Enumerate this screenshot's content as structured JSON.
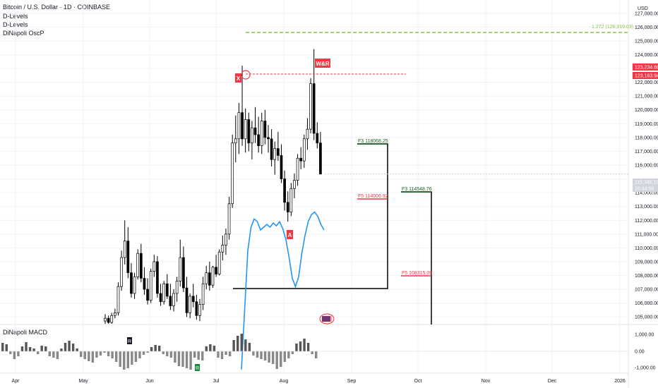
{
  "header": {
    "title": "Bitcoin / U.S. Dollar · 1D · COINBASE",
    "indicators": [
      "D-Levels",
      "D-Levels",
      "DiNapoli OscP"
    ],
    "macd_title": "DiNapoli MACD",
    "currency": "USD"
  },
  "price_axis": {
    "ticks": [
      "127,000.00",
      "126,000.00",
      "125,000.00",
      "124,000.00",
      "122,000.00",
      "121,000.00",
      "120,000.00",
      "119,000.00",
      "118,000.00",
      "117,000.00",
      "116,000.00",
      "114,000.00",
      "113,000.00",
      "112,000.00",
      "111,000.00",
      "110,000.00",
      "109,000.00",
      "108,000.00",
      "107,000.00",
      "106,000.00",
      "105,000.00"
    ],
    "tag_high": "123,234.60",
    "tag_mid": "123,163.94",
    "tag_last": "115,346.19",
    "tag_timer": "16:44:58"
  },
  "macd_axis": {
    "ticks": [
      "1,000.00",
      "0.00",
      "-1,000.00"
    ]
  },
  "time_axis": {
    "labels": [
      "Apr",
      "May",
      "Jun",
      "Jul",
      "Aug",
      "Sep",
      "Oct",
      "Nov",
      "Dec",
      "2026"
    ]
  },
  "annotations": {
    "ext_label": "1.272 (126,319.03)",
    "x_label": "X",
    "a_label": "A",
    "wbr_label": "W&R",
    "f3_left": "F3    118068.25",
    "f5_left": "F5    114006.92",
    "f3_right": "F3    114548.76",
    "f5_right": "F5    108315.09",
    "macd_r1": "R",
    "macd_r2": "R"
  },
  "colors": {
    "up": "#ffffff",
    "down": "#000000",
    "grid": "#f0f3fa",
    "ext_line": "#8bc34a",
    "red": "#f23645",
    "green": "#1b5e20",
    "osc": "#2196f3",
    "last_price": "#cccccc",
    "dark_tag": "#131722"
  },
  "chart_data": {
    "type": "candlestick",
    "title": "Bitcoin / U.S. Dollar · 1D · COINBASE",
    "ylim": [
      104500,
      127500
    ],
    "y_unit": "USD",
    "price_levels": [
      {
        "label": "1.272",
        "value": 126319.03
      },
      {
        "label": "F3",
        "value": 118068.25
      },
      {
        "label": "F5",
        "value": 114006.92
      },
      {
        "label": "F3",
        "value": 114548.76
      },
      {
        "label": "F5",
        "value": 108315.09
      }
    ],
    "last_price": 115346.19,
    "high_marker": 123234.6,
    "ohlc_approx": [
      [
        104700,
        105200,
        104300,
        104900
      ],
      [
        104900,
        105100,
        104500,
        104600
      ],
      [
        104600,
        105300,
        104400,
        105100
      ],
      [
        105100,
        105600,
        104900,
        105300
      ],
      [
        105300,
        107500,
        105100,
        107200
      ],
      [
        107200,
        109800,
        106900,
        109300
      ],
      [
        109300,
        112000,
        108800,
        110500
      ],
      [
        110500,
        111500,
        107800,
        108200
      ],
      [
        108200,
        108900,
        106400,
        106700
      ],
      [
        106700,
        108200,
        106300,
        107900
      ],
      [
        107900,
        109900,
        107700,
        109600
      ],
      [
        109600,
        110300,
        107500,
        107800
      ],
      [
        107800,
        108600,
        106600,
        107000
      ],
      [
        107000,
        107800,
        105900,
        106200
      ],
      [
        106200,
        108500,
        106000,
        108300
      ],
      [
        108300,
        109500,
        107900,
        109000
      ],
      [
        109000,
        109400,
        106400,
        106700
      ],
      [
        106700,
        107400,
        105800,
        106100
      ],
      [
        106100,
        107600,
        105900,
        107400
      ],
      [
        107400,
        108100,
        106300,
        106500
      ],
      [
        106500,
        107400,
        105500,
        105800
      ],
      [
        105800,
        107000,
        105400,
        106700
      ],
      [
        106700,
        107900,
        106100,
        107600
      ],
      [
        107600,
        110600,
        107200,
        109300
      ],
      [
        109300,
        110100,
        106800,
        107100
      ],
      [
        107100,
        107900,
        105000,
        105300
      ],
      [
        105300,
        106700,
        104900,
        106500
      ],
      [
        106500,
        107400,
        105700,
        106100
      ],
      [
        106100,
        106600,
        104800,
        105100
      ],
      [
        105100,
        106300,
        104700,
        105900
      ],
      [
        105900,
        107900,
        105500,
        107400
      ],
      [
        107400,
        108700,
        107000,
        108200
      ],
      [
        108200,
        109000,
        106900,
        107300
      ],
      [
        107300,
        108700,
        107100,
        108600
      ],
      [
        108600,
        109500,
        107900,
        108100
      ],
      [
        108100,
        109900,
        108000,
        109700
      ],
      [
        109700,
        110900,
        109100,
        110200
      ],
      [
        110200,
        111400,
        109500,
        111000
      ],
      [
        111000,
        113700,
        110600,
        113200
      ],
      [
        113200,
        118200,
        112900,
        117600
      ],
      [
        117600,
        119600,
        116200,
        117900
      ],
      [
        117900,
        120500,
        116800,
        119800
      ],
      [
        119800,
        123200,
        117400,
        117900
      ],
      [
        117900,
        120100,
        116900,
        119300
      ],
      [
        119300,
        119800,
        117000,
        117600
      ],
      [
        117600,
        119200,
        116400,
        118700
      ],
      [
        118700,
        120200,
        117600,
        118200
      ],
      [
        118200,
        119500,
        116900,
        117400
      ],
      [
        117400,
        119800,
        116800,
        119200
      ],
      [
        119200,
        120000,
        117500,
        118000
      ],
      [
        118000,
        118900,
        116900,
        117900
      ],
      [
        117900,
        118600,
        115900,
        116400
      ],
      [
        116400,
        117700,
        115300,
        117200
      ],
      [
        117200,
        118400,
        116300,
        116700
      ],
      [
        116700,
        117500,
        114700,
        115000
      ],
      [
        115000,
        115600,
        112700,
        113300
      ],
      [
        113300,
        114100,
        111900,
        112600
      ],
      [
        112600,
        114700,
        112300,
        114300
      ],
      [
        114300,
        115400,
        113600,
        114900
      ],
      [
        114900,
        116800,
        114500,
        116500
      ],
      [
        116500,
        117300,
        115700,
        116300
      ],
      [
        116300,
        118200,
        115800,
        117900
      ],
      [
        117900,
        119400,
        117100,
        118600
      ],
      [
        118600,
        122300,
        118300,
        121900
      ],
      [
        121900,
        124400,
        117800,
        118300
      ],
      [
        118300,
        119100,
        117200,
        117600
      ],
      [
        117600,
        118400,
        115600,
        115346
      ]
    ],
    "oscillator_values": [
      101200,
      105500,
      109800,
      111500,
      112100,
      111900,
      111300,
      111500,
      111700,
      111500,
      111800,
      111600,
      111900,
      111400,
      110600,
      109300,
      107800,
      107200,
      107900,
      109600,
      110900,
      111900,
      112400,
      112600,
      112300,
      111700,
      111300
    ],
    "macd_histogram": [
      600,
      500,
      -200,
      -550,
      -350,
      350,
      650,
      300,
      200,
      -200,
      400,
      350,
      -350,
      -450,
      -550,
      200,
      600,
      750,
      550,
      200,
      -400,
      -550,
      -700,
      -800,
      -450,
      -300,
      -100,
      -350,
      -500,
      -750,
      -1100,
      -1300,
      -1200,
      -950,
      -750,
      -500,
      -250,
      -100,
      300,
      450,
      400,
      -200,
      -350,
      -450,
      -800,
      -1050,
      -1100,
      -1200,
      -1300,
      -450,
      -600,
      -650,
      350,
      500,
      400,
      -450,
      -550,
      -250,
      -350,
      800,
      1100,
      1250,
      850,
      600,
      -300,
      -450,
      -550,
      -650,
      -800,
      -900,
      -1250,
      -1100,
      -750,
      -500,
      -200,
      550,
      700,
      900,
      600,
      -200,
      -500
    ]
  }
}
